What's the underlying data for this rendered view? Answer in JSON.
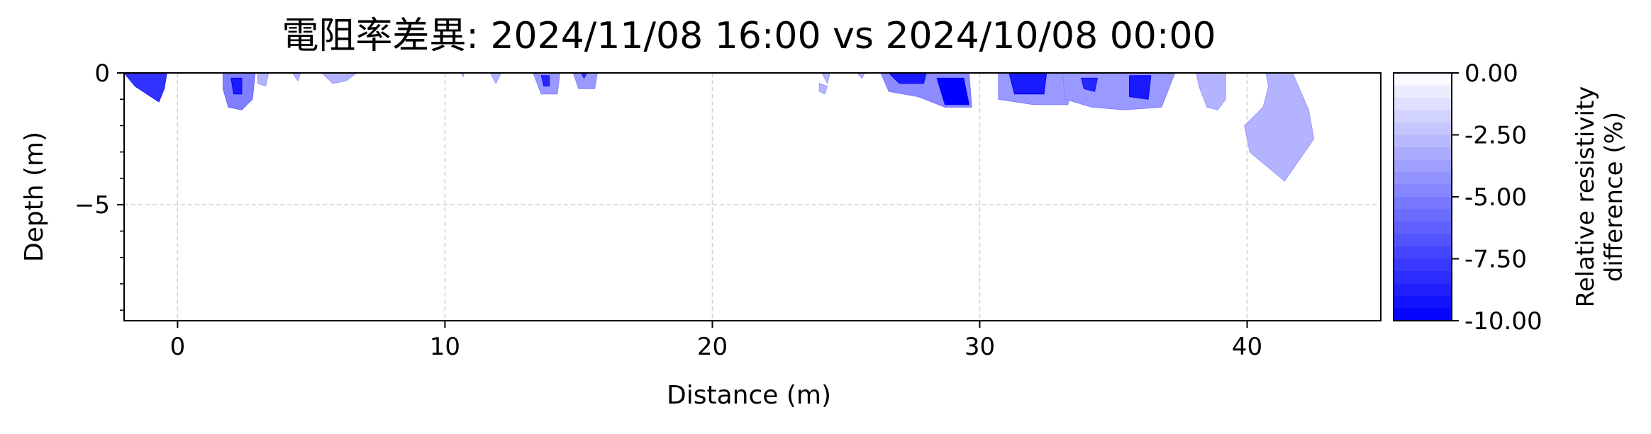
{
  "chart_data": {
    "type": "contour",
    "title": "電阻率差異: 2024/11/08 16:00 vs 2024/10/08 00:00",
    "xlabel": "Distance (m)",
    "ylabel": "Depth (m)",
    "xlim": [
      -2,
      45
    ],
    "ylim": [
      -9.4,
      0
    ],
    "xticks": [
      0,
      10,
      20,
      30,
      40
    ],
    "xtick_labels": [
      "0",
      "10",
      "20",
      "30",
      "40"
    ],
    "yticks": [
      0,
      -5
    ],
    "ytick_labels": [
      "0",
      "−5"
    ],
    "y_minor_ticks": [
      -1,
      -2,
      -3,
      -4,
      -6,
      -7,
      -8,
      -9
    ],
    "grid": true,
    "colorbar": {
      "label_line1": "Relative resistivity",
      "label_line2": "difference (%)",
      "vmin": -10,
      "vmax": 0,
      "ticks": [
        0,
        -2.5,
        -5,
        -7.5,
        -10
      ],
      "tick_labels": [
        "0.00",
        "-2.50",
        "-5.00",
        "-7.50",
        "-10.00"
      ],
      "levels": 20,
      "color_low": "#0000ff",
      "color_high": "#ffffff"
    },
    "anomalies": [
      {
        "name": "anomaly-x-1",
        "value": -8.0,
        "points": [
          [
            -2,
            0
          ],
          [
            -0.4,
            0
          ],
          [
            -0.5,
            -0.6
          ],
          [
            -0.7,
            -1.1
          ],
          [
            -1.6,
            -0.5
          ]
        ]
      },
      {
        "name": "anomaly-x2",
        "value": -5.0,
        "points": [
          [
            1.7,
            0
          ],
          [
            2.9,
            0
          ],
          [
            2.8,
            -1.0
          ],
          [
            2.4,
            -1.4
          ],
          [
            1.9,
            -1.3
          ],
          [
            1.7,
            -0.6
          ]
        ]
      },
      {
        "name": "anomaly-x2-core",
        "value": -9.0,
        "points": [
          [
            2.0,
            -0.2
          ],
          [
            2.4,
            -0.2
          ],
          [
            2.4,
            -0.8
          ],
          [
            2.1,
            -0.8
          ]
        ]
      },
      {
        "name": "anomaly-x3",
        "value": -3.0,
        "points": [
          [
            3.0,
            0
          ],
          [
            3.4,
            0
          ],
          [
            3.3,
            -0.5
          ],
          [
            3.0,
            -0.4
          ]
        ]
      },
      {
        "name": "anomaly-x4",
        "value": -3.0,
        "points": [
          [
            4.3,
            0
          ],
          [
            4.6,
            0
          ],
          [
            4.5,
            -0.3
          ]
        ]
      },
      {
        "name": "anomaly-x6",
        "value": -3.0,
        "points": [
          [
            5.4,
            0
          ],
          [
            6.7,
            0
          ],
          [
            6.3,
            -0.3
          ],
          [
            5.8,
            -0.4
          ]
        ]
      },
      {
        "name": "anomaly-x10",
        "value": -3.0,
        "points": [
          [
            10.6,
            0
          ],
          [
            10.7,
            0
          ],
          [
            10.7,
            -0.15
          ]
        ]
      },
      {
        "name": "anomaly-x12",
        "value": -3.0,
        "points": [
          [
            11.7,
            0
          ],
          [
            12.1,
            0
          ],
          [
            11.9,
            -0.4
          ]
        ]
      },
      {
        "name": "anomaly-x13",
        "value": -4.0,
        "points": [
          [
            13.3,
            0
          ],
          [
            14.3,
            0
          ],
          [
            14.2,
            -0.8
          ],
          [
            13.6,
            -0.8
          ]
        ]
      },
      {
        "name": "anomaly-x13-core",
        "value": -8.5,
        "points": [
          [
            13.6,
            -0.1
          ],
          [
            13.9,
            -0.1
          ],
          [
            13.9,
            -0.5
          ],
          [
            13.7,
            -0.5
          ]
        ]
      },
      {
        "name": "anomaly-x15",
        "value": -4.0,
        "points": [
          [
            14.8,
            0
          ],
          [
            15.7,
            0
          ],
          [
            15.6,
            -0.6
          ],
          [
            15.0,
            -0.6
          ]
        ]
      },
      {
        "name": "anomaly-x15-core",
        "value": -8.0,
        "points": [
          [
            15.1,
            0
          ],
          [
            15.3,
            0
          ],
          [
            15.2,
            -0.2
          ]
        ]
      },
      {
        "name": "anomaly-x24",
        "value": -3.0,
        "points": [
          [
            24.0,
            -0.4
          ],
          [
            24.3,
            -0.5
          ],
          [
            24.2,
            -0.8
          ],
          [
            24.0,
            -0.7
          ]
        ]
      },
      {
        "name": "anomaly-x24b",
        "value": -3.0,
        "points": [
          [
            24.1,
            0
          ],
          [
            24.4,
            0
          ],
          [
            24.3,
            -0.4
          ]
        ]
      },
      {
        "name": "anomaly-x25",
        "value": -3.0,
        "points": [
          [
            25.4,
            0
          ],
          [
            25.7,
            0
          ],
          [
            25.6,
            -0.2
          ]
        ]
      },
      {
        "name": "anomaly-x27",
        "value": -4.5,
        "points": [
          [
            26.3,
            0
          ],
          [
            29.6,
            0
          ],
          [
            29.7,
            -1.3
          ],
          [
            28.7,
            -1.3
          ],
          [
            27.7,
            -0.9
          ],
          [
            26.6,
            -0.7
          ]
        ]
      },
      {
        "name": "anomaly-x27-core",
        "value": -9.0,
        "points": [
          [
            26.6,
            0
          ],
          [
            28.0,
            0
          ],
          [
            27.9,
            -0.4
          ],
          [
            27.0,
            -0.4
          ]
        ]
      },
      {
        "name": "anomaly-x29-core",
        "value": -10.0,
        "points": [
          [
            28.4,
            -0.2
          ],
          [
            29.4,
            -0.2
          ],
          [
            29.6,
            -1.2
          ],
          [
            28.7,
            -1.2
          ]
        ]
      },
      {
        "name": "anomaly-x31",
        "value": -4.0,
        "points": [
          [
            30.7,
            0
          ],
          [
            33.5,
            0
          ],
          [
            33.3,
            -1.2
          ],
          [
            32.0,
            -1.2
          ],
          [
            30.7,
            -1.0
          ]
        ]
      },
      {
        "name": "anomaly-x31-core",
        "value": -9.0,
        "points": [
          [
            31.1,
            0
          ],
          [
            32.5,
            0
          ],
          [
            32.4,
            -0.8
          ],
          [
            31.3,
            -0.8
          ]
        ]
      },
      {
        "name": "anomaly-x33",
        "value": -4.0,
        "points": [
          [
            33.1,
            0
          ],
          [
            37.3,
            0
          ],
          [
            36.8,
            -1.3
          ],
          [
            35.4,
            -1.4
          ],
          [
            34.2,
            -1.3
          ],
          [
            33.2,
            -1.0
          ]
        ]
      },
      {
        "name": "anomaly-x34-core",
        "value": -8.5,
        "points": [
          [
            33.8,
            -0.2
          ],
          [
            34.4,
            -0.2
          ],
          [
            34.3,
            -0.7
          ],
          [
            33.9,
            -0.6
          ]
        ]
      },
      {
        "name": "anomaly-x36-core",
        "value": -9.0,
        "points": [
          [
            35.6,
            -0.1
          ],
          [
            36.4,
            -0.1
          ],
          [
            36.3,
            -1.0
          ],
          [
            35.6,
            -0.9
          ]
        ]
      },
      {
        "name": "anomaly-x38",
        "value": -3.0,
        "points": [
          [
            38.1,
            0
          ],
          [
            39.2,
            0
          ],
          [
            39.2,
            -1.0
          ],
          [
            38.9,
            -1.4
          ],
          [
            38.5,
            -1.3
          ],
          [
            38.2,
            -0.5
          ]
        ]
      },
      {
        "name": "anomaly-x41",
        "value": -3.0,
        "points": [
          [
            40.7,
            0
          ],
          [
            41.7,
            0
          ],
          [
            42.3,
            -1.4
          ],
          [
            42.5,
            -2.5
          ],
          [
            41.4,
            -4.1
          ],
          [
            40.1,
            -3.0
          ],
          [
            39.9,
            -2.0
          ],
          [
            40.6,
            -1.3
          ],
          [
            40.8,
            -0.5
          ]
        ]
      }
    ]
  }
}
